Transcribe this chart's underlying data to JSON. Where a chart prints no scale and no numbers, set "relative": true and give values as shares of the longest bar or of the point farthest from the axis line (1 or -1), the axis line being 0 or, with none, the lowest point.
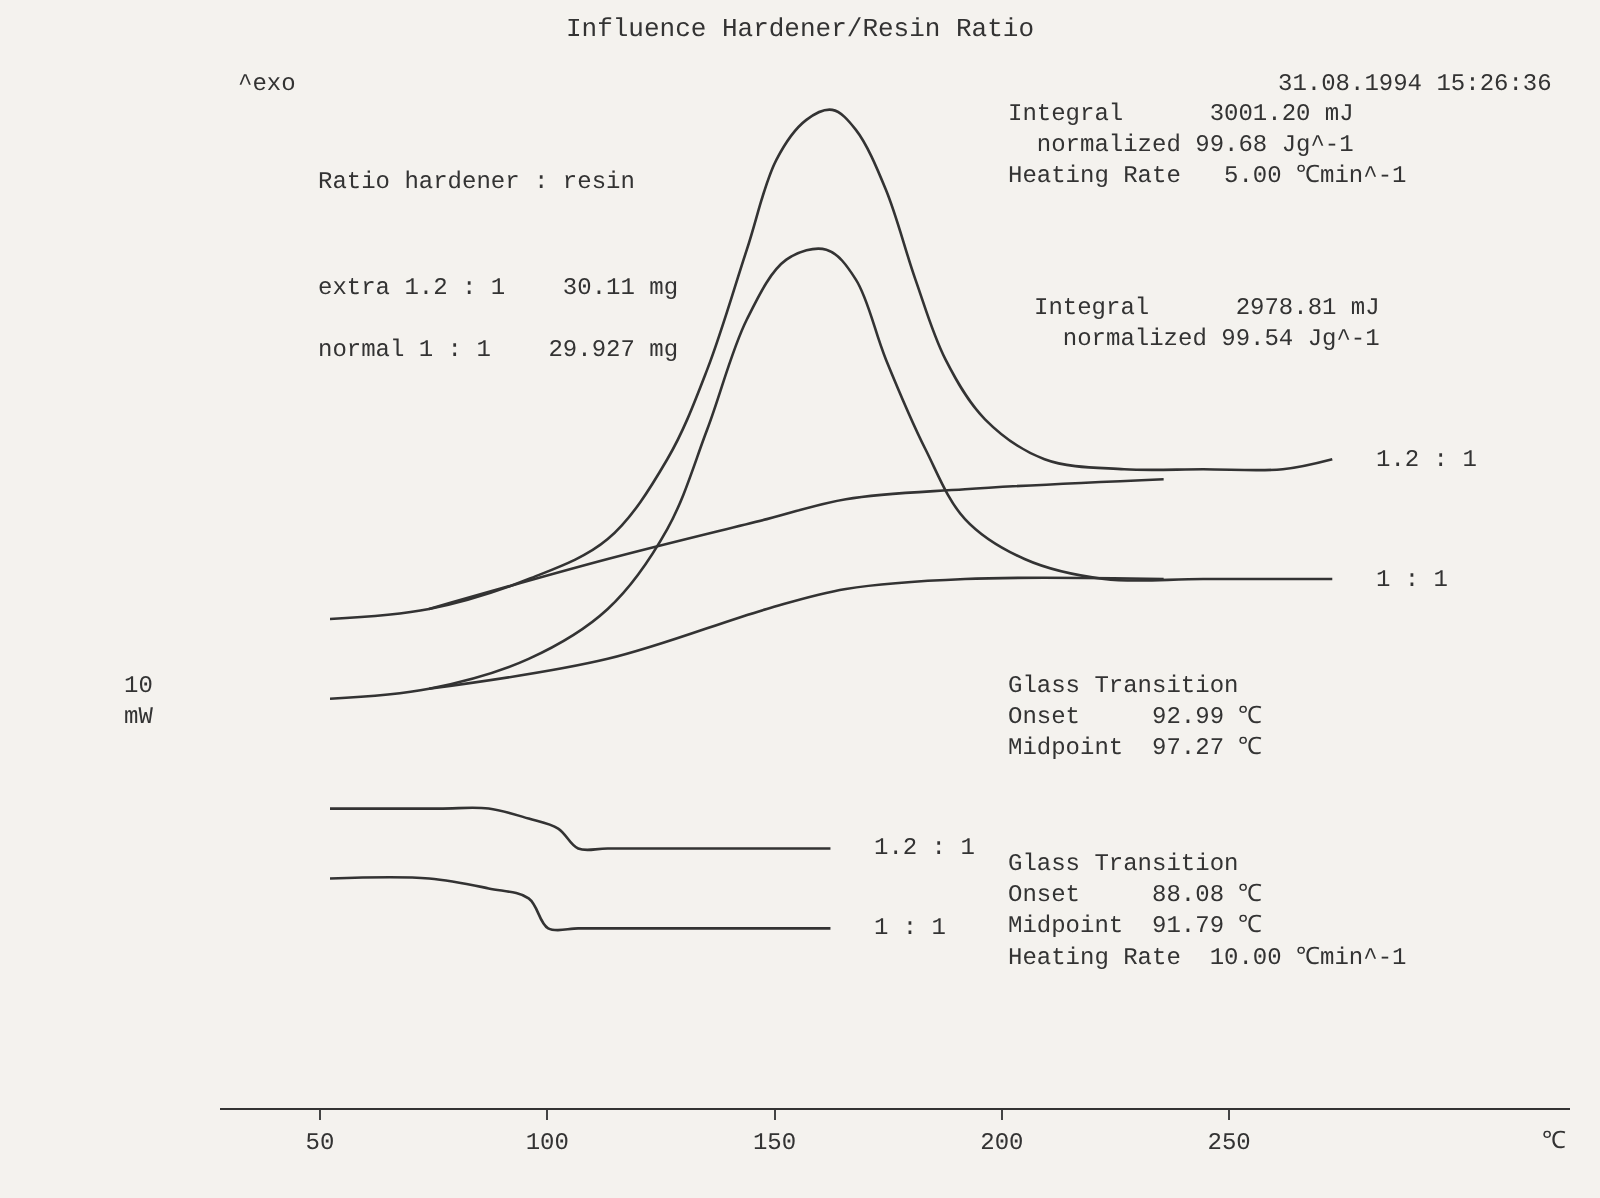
{
  "chart_data": {
    "type": "line",
    "title": "Influence Hardener/Resin Ratio",
    "xlabel": "℃",
    "relative": true,
    "xlim": [
      28,
      325
    ],
    "xticks": [
      50,
      100,
      150,
      200,
      250
    ],
    "grid": false,
    "legend": false,
    "marker": "none",
    "line_style": "solid",
    "series": [
      {
        "name": "1.2 : 1",
        "color": "#333333",
        "x": [
          52.2,
          74.0,
          95.9,
          113.3,
          126.4,
          135.2,
          143.9,
          150.4,
          157.0,
          162.7,
          167.9,
          174.5,
          181.0,
          187.6,
          196.3,
          209.4,
          226.9,
          244.3,
          261.8,
          272.7
        ],
        "values": [
          0.49,
          0.5,
          0.53,
          0.57,
          0.65,
          0.74,
          0.86,
          0.95,
          0.99,
          1.0,
          0.98,
          0.92,
          0.83,
          0.75,
          0.69,
          0.65,
          0.64,
          0.64,
          0.64,
          0.65
        ]
      },
      {
        "color": "#333333",
        "x": [
          74.0,
          113.3,
          148.3,
          165.7,
          191.9,
          235.6
        ],
        "values": [
          0.5,
          0.55,
          0.59,
          0.61,
          0.62,
          0.63
        ]
      },
      {
        "name": "1 : 1",
        "color": "#333333",
        "x": [
          52.2,
          74.0,
          95.9,
          113.3,
          126.4,
          135.2,
          143.9,
          152.6,
          161.4,
          167.9,
          174.5,
          183.2,
          191.9,
          205.0,
          222.5,
          244.3,
          272.7
        ],
        "values": [
          0.41,
          0.42,
          0.45,
          0.5,
          0.58,
          0.68,
          0.79,
          0.85,
          0.86,
          0.83,
          0.75,
          0.66,
          0.59,
          0.55,
          0.53,
          0.53,
          0.53
        ]
      },
      {
        "color": "#333333",
        "x": [
          74.0,
          113.3,
          148.3,
          165.7,
          191.9,
          235.6
        ],
        "values": [
          0.42,
          0.45,
          0.5,
          0.52,
          0.53,
          0.53
        ]
      },
      {
        "name": "1.2 : 1",
        "color": "#333333",
        "x": [
          52.2,
          76.2,
          87.1,
          95.9,
          102.4,
          106.8,
          113.3,
          135.2,
          162.3
        ],
        "values": [
          0.3,
          0.3,
          0.3,
          0.29,
          0.28,
          0.26,
          0.26,
          0.26,
          0.26
        ]
      },
      {
        "name": "1 : 1",
        "color": "#333333",
        "x": [
          52.2,
          74.0,
          87.1,
          95.9,
          100.2,
          106.8,
          113.3,
          135.2,
          162.3
        ],
        "values": [
          0.23,
          0.23,
          0.22,
          0.21,
          0.18,
          0.18,
          0.18,
          0.18,
          0.18
        ]
      }
    ],
    "annotations": [
      "^exo",
      "31.08.1994 15:26:36",
      "Integral      3001.20 mJ\n  normalized 99.68 Jg^-1\nHeating Rate   5.00 ℃min^-1",
      "Ratio hardener : resin",
      "extra 1.2 : 1    30.11 mg",
      "normal 1 : 1    29.927 mg",
      "Integral      2978.81 mJ\n  normalized 99.54 Jg^-1",
      "10\nmW",
      "Glass Transition\nOnset     92.99 ℃\nMidpoint  97.27 ℃",
      "Glass Transition\nOnset     88.08 ℃\nMidpoint  91.79 ℃\nHeating Rate  10.00 ℃min^-1"
    ]
  }
}
